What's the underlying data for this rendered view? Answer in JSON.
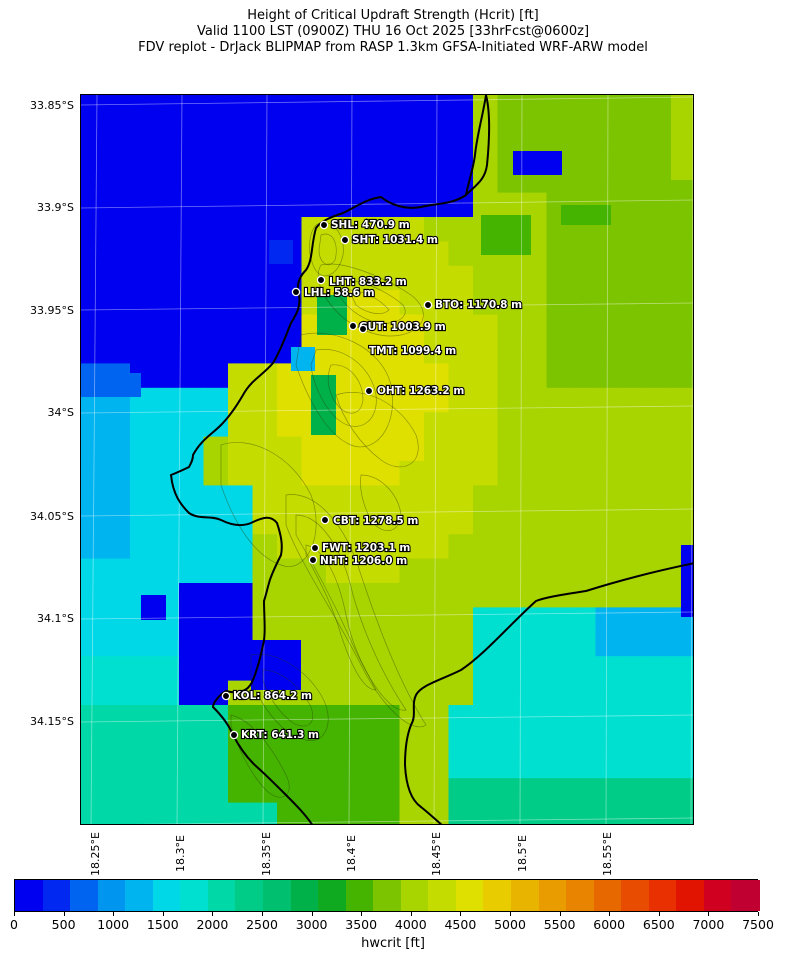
{
  "title": {
    "line1": "Height of Critical Updraft Strength (Hcrit) [ft]",
    "line2": "Valid 1100 LST (0900Z) THU 16 Oct 2025 [33hrFcst@0600z]",
    "line3": "FDV replot - DrJack BLIPMAP from RASP 1.3km GFSA-Initiated WRF-ARW model"
  },
  "axes": {
    "lat_labels": [
      "33.85°S",
      "33.9°S",
      "33.95°S",
      "34°S",
      "34.05°S",
      "34.1°S",
      "34.15°S"
    ],
    "lon_labels": [
      "18.25°E",
      "18.3°E",
      "18.35°E",
      "18.4°E",
      "18.45°E",
      "18.5°E",
      "18.55°E"
    ]
  },
  "colorbar": {
    "label": "hwcrit [ft]",
    "ticks": [
      "0",
      "500",
      "1000",
      "1500",
      "2000",
      "2500",
      "3000",
      "3500",
      "4000",
      "4500",
      "5000",
      "5500",
      "6000",
      "6500",
      "7000",
      "7500"
    ],
    "colors": [
      "#0000f0",
      "#0028f0",
      "#0064f0",
      "#0096f0",
      "#00b4f0",
      "#00d8e8",
      "#00e0d0",
      "#00d8a8",
      "#00cc88",
      "#00c070",
      "#00b048",
      "#10aa20",
      "#44b400",
      "#7cc400",
      "#a8d400",
      "#c4dc00",
      "#e0e000",
      "#e8cc00",
      "#e8b400",
      "#e89c00",
      "#e88400",
      "#e86800",
      "#e84c00",
      "#e83000",
      "#e01400",
      "#d00020",
      "#c00030"
    ]
  },
  "stations": [
    {
      "code": "SHL",
      "label": "SHL: 470.9 m"
    },
    {
      "code": "SHT",
      "label": "SHT: 1031.4 m"
    },
    {
      "code": "LHT",
      "label": "LHT: 833.2 m"
    },
    {
      "code": "LHL",
      "label": "LHL: 58.6 m"
    },
    {
      "code": "BTO",
      "label": "BTO: 1170.8 m"
    },
    {
      "code": "GUT",
      "label": "GUT: 1003.9 m"
    },
    {
      "code": "TMT",
      "label": "TMT: 1099.4 m"
    },
    {
      "code": "OHT",
      "label": "OHT: 1263.2 m"
    },
    {
      "code": "CBT",
      "label": "CBT: 1278.5 m"
    },
    {
      "code": "FWT",
      "label": "FWT: 1203.1 m"
    },
    {
      "code": "NHT",
      "label": "NHT: 1206.0 m"
    },
    {
      "code": "KOL",
      "label": "KOL: 864.2 m"
    },
    {
      "code": "KRT",
      "label": "KRT: 641.3 m"
    }
  ]
}
